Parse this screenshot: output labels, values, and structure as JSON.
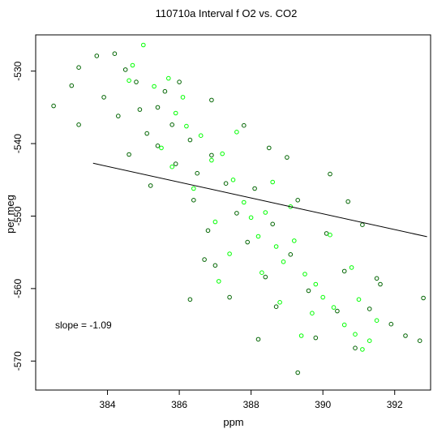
{
  "chart_data": {
    "type": "scatter",
    "title": "110710a   Interval f O2 vs. CO2",
    "xlabel": "ppm",
    "ylabel": "per meg",
    "xlim": [
      382.0,
      393.0
    ],
    "ylim": [
      -574.0,
      -525.0
    ],
    "x_ticks": [
      384,
      386,
      388,
      390,
      392
    ],
    "y_ticks": [
      -530,
      -540,
      -550,
      -560,
      -570
    ],
    "annotation": "slope =  -1.09",
    "slope": -1.09,
    "intercept": -548.05,
    "line_x_range": [
      383.6,
      392.9
    ],
    "series": [
      {
        "key": "dark",
        "color": "#006400",
        "points": [
          [
            382.5,
            -534.8
          ],
          [
            383.0,
            -532.0
          ],
          [
            383.2,
            -529.5
          ],
          [
            383.2,
            -537.4
          ],
          [
            383.7,
            -527.9
          ],
          [
            384.2,
            -527.6
          ],
          [
            384.5,
            -529.8
          ],
          [
            384.8,
            -531.5
          ],
          [
            384.3,
            -536.2
          ],
          [
            384.9,
            -535.3
          ],
          [
            385.4,
            -535.0
          ],
          [
            385.1,
            -538.6
          ],
          [
            385.8,
            -537.4
          ],
          [
            385.4,
            -540.3
          ],
          [
            385.9,
            -542.8
          ],
          [
            386.3,
            -539.5
          ],
          [
            386.5,
            -544.1
          ],
          [
            386.9,
            -541.6
          ],
          [
            386.4,
            -547.8
          ],
          [
            386.8,
            -552.0
          ],
          [
            387.3,
            -545.5
          ],
          [
            387.6,
            -549.6
          ],
          [
            387.0,
            -556.8
          ],
          [
            387.4,
            -561.2
          ],
          [
            387.9,
            -553.6
          ],
          [
            388.1,
            -546.2
          ],
          [
            388.4,
            -558.4
          ],
          [
            388.6,
            -551.1
          ],
          [
            388.7,
            -562.5
          ],
          [
            389.1,
            -555.3
          ],
          [
            389.3,
            -547.8
          ],
          [
            389.6,
            -560.3
          ],
          [
            389.8,
            -566.8
          ],
          [
            390.1,
            -552.4
          ],
          [
            390.4,
            -563.1
          ],
          [
            390.6,
            -557.6
          ],
          [
            390.9,
            -568.2
          ],
          [
            391.3,
            -562.8
          ],
          [
            391.6,
            -559.4
          ],
          [
            391.9,
            -564.9
          ],
          [
            392.3,
            -566.5
          ],
          [
            392.7,
            -567.2
          ],
          [
            392.8,
            -561.3
          ],
          [
            391.1,
            -551.2
          ],
          [
            389.3,
            -571.6
          ],
          [
            388.5,
            -540.6
          ],
          [
            386.9,
            -534.0
          ],
          [
            386.0,
            -531.5
          ],
          [
            388.2,
            -567.0
          ],
          [
            386.3,
            -561.5
          ],
          [
            390.2,
            -544.2
          ],
          [
            391.5,
            -558.6
          ],
          [
            385.6,
            -532.8
          ],
          [
            387.8,
            -537.5
          ],
          [
            389.0,
            -541.9
          ],
          [
            390.7,
            -548.0
          ],
          [
            384.6,
            -541.5
          ],
          [
            385.2,
            -545.8
          ],
          [
            383.9,
            -533.6
          ],
          [
            386.7,
            -556.0
          ]
        ]
      },
      {
        "key": "green",
        "color": "#00ff00",
        "points": [
          [
            385.0,
            -526.4
          ],
          [
            384.7,
            -529.2
          ],
          [
            385.3,
            -532.1
          ],
          [
            385.7,
            -531.0
          ],
          [
            385.9,
            -535.8
          ],
          [
            386.2,
            -537.6
          ],
          [
            386.6,
            -538.9
          ],
          [
            386.9,
            -542.3
          ],
          [
            387.2,
            -541.4
          ],
          [
            387.5,
            -545.0
          ],
          [
            387.8,
            -548.1
          ],
          [
            388.0,
            -550.2
          ],
          [
            388.2,
            -552.8
          ],
          [
            388.4,
            -549.5
          ],
          [
            388.7,
            -554.2
          ],
          [
            388.9,
            -556.3
          ],
          [
            389.2,
            -553.4
          ],
          [
            389.5,
            -558.0
          ],
          [
            389.8,
            -559.4
          ],
          [
            390.0,
            -561.2
          ],
          [
            390.3,
            -562.6
          ],
          [
            390.6,
            -565.0
          ],
          [
            390.9,
            -566.3
          ],
          [
            391.1,
            -568.4
          ],
          [
            391.3,
            -567.2
          ],
          [
            391.5,
            -564.4
          ],
          [
            387.0,
            -550.8
          ],
          [
            387.4,
            -555.2
          ],
          [
            388.6,
            -545.3
          ],
          [
            389.1,
            -548.7
          ],
          [
            386.4,
            -546.2
          ],
          [
            389.7,
            -563.4
          ],
          [
            390.8,
            -557.1
          ],
          [
            385.5,
            -540.6
          ],
          [
            384.6,
            -531.3
          ],
          [
            386.1,
            -533.6
          ],
          [
            387.6,
            -538.4
          ],
          [
            388.3,
            -557.8
          ],
          [
            390.2,
            -552.6
          ],
          [
            391.0,
            -561.5
          ],
          [
            389.4,
            -566.5
          ],
          [
            387.1,
            -559.0
          ],
          [
            385.8,
            -543.2
          ],
          [
            388.8,
            -561.9
          ]
        ]
      }
    ]
  }
}
